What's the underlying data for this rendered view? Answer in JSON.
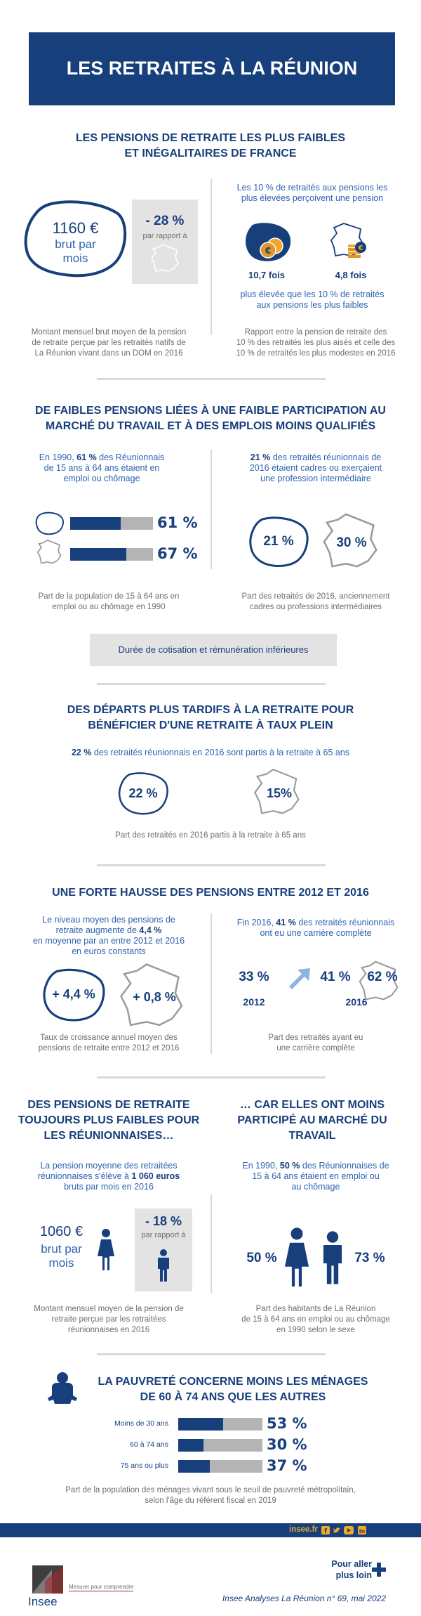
{
  "header": {
    "title": "LES RETRAITES À LA RÉUNION"
  },
  "s1": {
    "title_l1": "LES PENSIONS DE RETRAITE LES PLUS FAIBLES",
    "title_l2": "ET INÉGALITAIRES DE FRANCE",
    "amount": "1160 €",
    "amount_sub1": "brut par",
    "amount_sub2": "mois",
    "diff": "- 28 %",
    "diff_sub": "par rapport à",
    "right_intro_l1": "Les 10 % de retraités aux pensions les",
    "right_intro_l2": "plus élevées perçoivent une pension",
    "ratio_reunion": "10,7 fois",
    "ratio_france": "4,8 fois",
    "right_after_l1": "plus élevée que les 10 % de retraités",
    "right_after_l2": "aux pensions les plus faibles",
    "cap_left_l1": "Montant mensuel brut moyen de la pension",
    "cap_left_l2": "de retraite perçue par les retraités natifs de",
    "cap_left_l3": "La Réunion vivant dans un DOM en 2016",
    "cap_right_l1": "Rapport entre la pension de retraite des",
    "cap_right_l2": "10 % des retraités les plus aisés et celle des",
    "cap_right_l3": "10 % de retraités les plus modestes en 2016"
  },
  "s2": {
    "title_l1": "DE FAIBLES PENSIONS LIÉES À UNE FAIBLE PARTICIPATION AU",
    "title_l2": "MARCHÉ DU TRAVAIL ET À DES EMPLOIS MOINS QUALIFIÉS",
    "left_l1_pre": "En 1990, ",
    "left_l1_bold": "61 %",
    "left_l1_post": " des Réunionnais",
    "left_l2": "de 15 ans à 64 ans étaient en",
    "left_l3": "emploi ou chômage",
    "bar1_label": "61 %",
    "bar2_label": "67 %",
    "right_l1_bold": "21 %",
    "right_l1_post": " des retraités réunionnais de",
    "right_l2": "2016 étaient cadres ou exerçaient",
    "right_l3": "une profession intermédiaire",
    "pct_reunion": "21 %",
    "pct_france": "30 %",
    "cap_left_l1": "Part de la population de 15 à 64 ans en",
    "cap_left_l2": "emploi ou au chômage en 1990",
    "cap_right_l1": "Part des retraités de 2016, anciennement",
    "cap_right_l2": "cadres ou professions intermédiaires",
    "box": "Durée de cotisation et rémunération inférieures"
  },
  "s3": {
    "title_l1": "DES DÉPARTS PLUS TARDIFS À LA RETRAITE POUR",
    "title_l2": "BÉNÉFICIER D'UNE RETRAITE À TAUX PLEIN",
    "intro_bold": "22 %",
    "intro_post": " des retraités réunionnais en 2016 sont partis à la retraite à 65 ans",
    "pct_reunion": "22 %",
    "pct_france": "15%",
    "caption": "Part des retraités en 2016 partis à la retraite à 65 ans"
  },
  "s4": {
    "title": "UNE FORTE HAUSSE DES PENSIONS ENTRE 2012 ET 2016",
    "left_l1": "Le niveau moyen des pensions de",
    "left_l2_pre": "retraite augmente de ",
    "left_l2_bold": "4,4 %",
    "left_l3": "en moyenne par an entre 2012 et 2016",
    "left_l4": "en euros constants",
    "growth_reunion": "+ 4,4 %",
    "growth_france": "+ 0,8 %",
    "right_l1_pre": "Fin 2016, ",
    "right_l1_bold": "41 %",
    "right_l1_post": " des retraités réunionnais",
    "right_l2": "ont eu une carrière complète",
    "val_2012": "33 %",
    "year_2012": "2012",
    "val_2016": "41 %",
    "year_2016": "2016",
    "val_france": "62 %",
    "cap_left_l1": "Taux de croissance annuel moyen des",
    "cap_left_l2": "pensions de retraite entre 2012 et 2016",
    "cap_right_l1": "Part des retraités ayant eu",
    "cap_right_l2": "une carrière complète"
  },
  "s5": {
    "title_left_l1": "DES PENSIONS DE RETRAITE",
    "title_left_l2": "TOUJOURS PLUS FAIBLES POUR",
    "title_left_l3": "LES RÉUNIONNAISES…",
    "title_right_l1": "… CAR ELLES ONT MOINS",
    "title_right_l2": "PARTICIPÉ AU MARCHÉ DU",
    "title_right_l3": "TRAVAIL",
    "left_l1": "La pension moyenne des retraitées",
    "left_l2_pre": "réunionnaises s'élève à ",
    "left_l2_bold": "1 060 euros",
    "left_l3": "bruts par mois en 2016",
    "amount": "1060 €",
    "amount_sub1": "brut par",
    "amount_sub2": "mois",
    "diff": "- 18 %",
    "diff_sub": "par rapport à",
    "right_l1_pre": "En 1990, ",
    "right_l1_bold": "50 %",
    "right_l1_post": " des Réunionnaises de",
    "right_l2": "15 à 64 ans étaient en emploi ou",
    "right_l3": "au chômage",
    "pct_women": "50 %",
    "pct_men": "73 %",
    "cap_left_l1": "Montant mensuel moyen de la pension de",
    "cap_left_l2": "retraite perçue par les retraitées",
    "cap_left_l3": "réunionnaises en 2016",
    "cap_right_l1": "Part des habitants de La Réunion",
    "cap_right_l2": "de 15 à 64 ans en emploi ou au chômage",
    "cap_right_l3": "en 1990 selon le sexe"
  },
  "s6": {
    "title_l1": "LA PAUVRETÉ CONCERNE MOINS LES MÉNAGES",
    "title_l2": "DE 60 À 74 ANS QUE LES AUTRES",
    "rows": [
      {
        "label": "Moins de 30 ans",
        "value": "53 %"
      },
      {
        "label": "60 à 74 ans",
        "value": "30 %"
      },
      {
        "label": "75 ans ou plus",
        "value": "37 %"
      }
    ],
    "cap_l1": "Part de la population des ménages vivant sous le seuil de pauvreté métropolitain,",
    "cap_l2": "selon l'âge du référent fiscal en 2019"
  },
  "footer": {
    "site": "insee.fr",
    "more_l1": "Pour aller",
    "more_l2": "plus loin",
    "logo": "Insee",
    "tagline": "Mesurer pour comprendre",
    "ref": "Insee Analyses La Réunion n° 69, mai 2022"
  },
  "colors": {
    "navy": "#173f7c",
    "blue": "#2d63b0",
    "grey_bar": "#b4b4b4",
    "light_box": "#e3e3e3",
    "footer_band": "#173f7c"
  }
}
